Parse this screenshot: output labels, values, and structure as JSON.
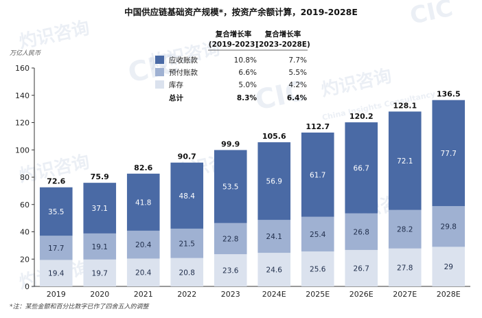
{
  "chart_data": {
    "type": "bar",
    "stacked": true,
    "title": "中国供应链基础资产规模*，按资产余额计算，2019-2028E",
    "unit_label": "万亿人民币",
    "categories": [
      "2019",
      "2020",
      "2021",
      "2022",
      "2023",
      "2024E",
      "2025E",
      "2026E",
      "2027E",
      "2028E"
    ],
    "series": [
      {
        "name": "库存",
        "color": "#dbe2ee",
        "label_color": "#1f2d4a",
        "values": [
          19.4,
          19.7,
          20.4,
          20.8,
          23.6,
          24.6,
          25.6,
          26.7,
          27.8,
          29.0
        ]
      },
      {
        "name": "预付账款",
        "color": "#9fb1d2",
        "label_color": "#1f2d4a",
        "values": [
          17.7,
          19.1,
          20.4,
          21.5,
          22.8,
          24.1,
          25.4,
          26.8,
          28.2,
          29.8
        ]
      },
      {
        "name": "应收账款",
        "color": "#4a6aa5",
        "label_color": "#ffffff",
        "values": [
          35.5,
          37.1,
          41.8,
          48.4,
          53.5,
          56.9,
          61.7,
          66.7,
          72.1,
          77.7
        ]
      }
    ],
    "totals": [
      72.6,
      75.9,
      82.6,
      90.7,
      99.9,
      105.6,
      112.7,
      120.2,
      128.1,
      136.5
    ],
    "total_labels": [
      "72.6",
      "75.9",
      "82.6",
      "90.7",
      "99.9",
      "105.6",
      "112.7",
      "120.2",
      "128.1",
      "136.5"
    ],
    "ylim": [
      0,
      160
    ],
    "yticks": [
      0,
      20,
      40,
      60,
      80,
      100,
      120,
      140,
      160
    ],
    "ytick_labels": [
      "0",
      "20",
      "40",
      "60",
      "80",
      "100",
      "120",
      "140",
      "160"
    ],
    "xlabel": "",
    "ylabel": "",
    "grid": false,
    "cagr_table": {
      "headers": [
        "复合增长率",
        "(2019-2023)",
        "复合增长率",
        "(2023-2028E)"
      ],
      "rows": [
        {
          "name": "应收账款",
          "color": "#4a6aa5",
          "v1": "10.8%",
          "v2": "7.7%"
        },
        {
          "name": "预付账款",
          "color": "#9fb1d2",
          "v1": "6.6%",
          "v2": "5.5%"
        },
        {
          "name": "库存",
          "color": "#dbe2ee",
          "v1": "5.0%",
          "v2": "4.2%"
        }
      ],
      "total_row": {
        "name": "总计",
        "v1": "8.3%",
        "v2": "6.4%"
      }
    },
    "note": "*注：某些金额和百分比数字已作了四舍五入的调整"
  },
  "watermark": {
    "logo": "CIC",
    "text_cn": "灼识咨询",
    "text_en": "China Insights Consultancy"
  }
}
